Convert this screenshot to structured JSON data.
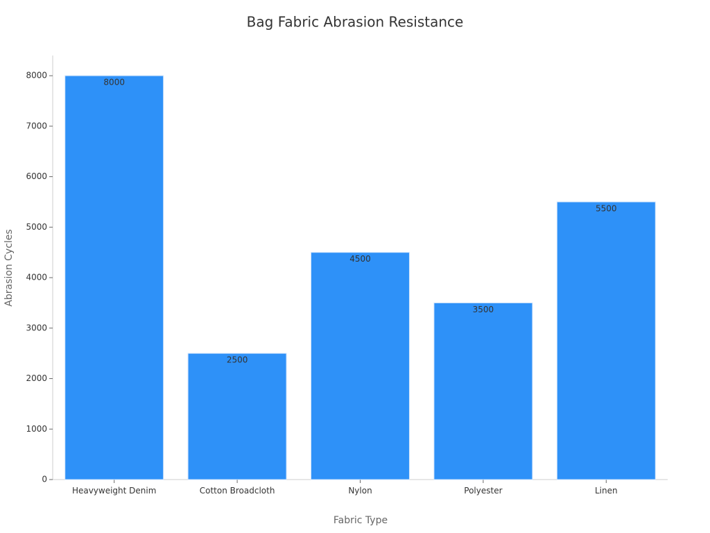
{
  "chart_data": {
    "type": "bar",
    "title": "Bag Fabric Abrasion Resistance",
    "x_label": "Fabric Type",
    "y_label": "Abrasion Cycles",
    "categories": [
      "Heavyweight Denim",
      "Cotton Broadcloth",
      "Nylon",
      "Polyester",
      "Linen"
    ],
    "values": [
      8000,
      2500,
      4500,
      3500,
      5500
    ],
    "color": "#2e91f8",
    "ylim": [
      0,
      8400
    ],
    "yticks": [
      0,
      1000,
      2000,
      3000,
      4000,
      5000,
      6000,
      7000,
      8000
    ],
    "grid": false
  }
}
